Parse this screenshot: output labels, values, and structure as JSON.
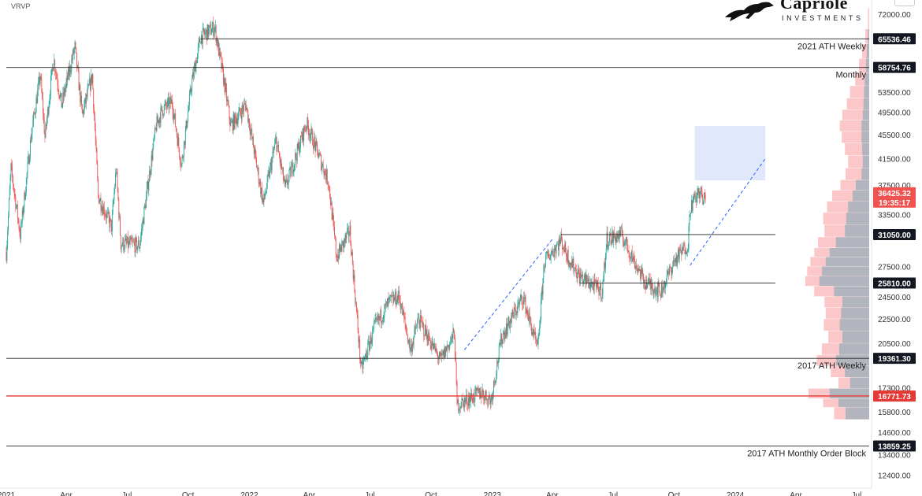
{
  "header": {
    "indicator_label": "VRVP",
    "logo": {
      "name": "Capriole",
      "tagline": "INVESTMENTS"
    }
  },
  "chart_data": {
    "type": "candlestick",
    "symbol": "BTCUSD",
    "y_scale": "log",
    "ylim": [
      11800,
      76000
    ],
    "xlim": [
      "2021-01-01",
      "2024-07-20"
    ],
    "y_ticks": [
      72000,
      53500,
      49500,
      45500,
      41500,
      37500,
      33500,
      27500,
      24500,
      22500,
      20500,
      17300,
      15800,
      14600,
      13400,
      12400
    ],
    "x_tick_labels": [
      {
        "label": "2021",
        "date": "2021-01-01"
      },
      {
        "label": "Apr",
        "date": "2021-04-01"
      },
      {
        "label": "Jul",
        "date": "2021-07-01"
      },
      {
        "label": "Oct",
        "date": "2021-10-01"
      },
      {
        "label": "2022",
        "date": "2022-01-01"
      },
      {
        "label": "Apr",
        "date": "2022-04-01"
      },
      {
        "label": "Jul",
        "date": "2022-07-01"
      },
      {
        "label": "Oct",
        "date": "2022-10-01"
      },
      {
        "label": "2023",
        "date": "2023-01-01"
      },
      {
        "label": "Apr",
        "date": "2023-04-01"
      },
      {
        "label": "Jul",
        "date": "2023-07-01"
      },
      {
        "label": "Oct",
        "date": "2023-10-01"
      },
      {
        "label": "2024",
        "date": "2024-01-01"
      },
      {
        "label": "Apr",
        "date": "2024-04-01"
      },
      {
        "label": "Jul",
        "date": "2024-07-01"
      }
    ],
    "price_path": [
      [
        "2021-01-01",
        29000
      ],
      [
        "2021-01-08",
        40000
      ],
      [
        "2021-01-22",
        31000
      ],
      [
        "2021-02-08",
        46000
      ],
      [
        "2021-02-21",
        57000
      ],
      [
        "2021-02-28",
        45000
      ],
      [
        "2021-03-13",
        61000
      ],
      [
        "2021-03-25",
        51000
      ],
      [
        "2021-04-14",
        63500
      ],
      [
        "2021-04-25",
        49000
      ],
      [
        "2021-05-10",
        57000
      ],
      [
        "2021-05-19",
        36000
      ],
      [
        "2021-06-08",
        32000
      ],
      [
        "2021-06-15",
        40000
      ],
      [
        "2021-06-22",
        30000
      ],
      [
        "2021-07-20",
        29800
      ],
      [
        "2021-08-14",
        47000
      ],
      [
        "2021-08-23",
        50000
      ],
      [
        "2021-09-07",
        51500
      ],
      [
        "2021-09-21",
        40500
      ],
      [
        "2021-10-06",
        55000
      ],
      [
        "2021-10-20",
        66000
      ],
      [
        "2021-11-10",
        68500
      ],
      [
        "2021-11-26",
        54000
      ],
      [
        "2021-12-04",
        47000
      ],
      [
        "2021-12-27",
        51000
      ],
      [
        "2022-01-22",
        35000
      ],
      [
        "2022-02-10",
        44500
      ],
      [
        "2022-02-24",
        37000
      ],
      [
        "2022-03-28",
        47500
      ],
      [
        "2022-04-30",
        38000
      ],
      [
        "2022-05-12",
        28500
      ],
      [
        "2022-06-01",
        31500
      ],
      [
        "2022-06-18",
        18500
      ],
      [
        "2022-07-08",
        21800
      ],
      [
        "2022-07-30",
        24000
      ],
      [
        "2022-08-14",
        24500
      ],
      [
        "2022-08-31",
        20000
      ],
      [
        "2022-09-12",
        22500
      ],
      [
        "2022-10-15",
        19200
      ],
      [
        "2022-11-05",
        21300
      ],
      [
        "2022-11-09",
        16200
      ],
      [
        "2022-12-15",
        17000
      ],
      [
        "2022-12-30",
        16500
      ],
      [
        "2023-01-15",
        21000
      ],
      [
        "2023-02-16",
        24500
      ],
      [
        "2023-03-10",
        20000
      ],
      [
        "2023-03-20",
        28000
      ],
      [
        "2023-04-14",
        30400
      ],
      [
        "2023-04-26",
        28300
      ],
      [
        "2023-05-12",
        26500
      ],
      [
        "2023-06-15",
        25000
      ],
      [
        "2023-06-22",
        30500
      ],
      [
        "2023-07-14",
        31000
      ],
      [
        "2023-08-17",
        26000
      ],
      [
        "2023-09-11",
        25000
      ],
      [
        "2023-10-01",
        28000
      ],
      [
        "2023-10-22",
        30000
      ],
      [
        "2023-10-25",
        34500
      ],
      [
        "2023-11-09",
        36700
      ],
      [
        "2023-11-14",
        35000
      ],
      [
        "2023-11-17",
        36425
      ]
    ],
    "levels": [
      {
        "value": 65536.46,
        "label": "65536.46",
        "caption": "2021 ATH Weekly",
        "start": "2021-10-20",
        "end": "2024-07-20",
        "color": "#222222",
        "tag_bg": "#131722"
      },
      {
        "value": 58754.76,
        "label": "58754.76",
        "caption": "Monthly",
        "start": "2021-01-01",
        "end": "2024-07-20",
        "color": "#222222",
        "tag_bg": "#131722"
      },
      {
        "value": 31050.0,
        "label": "31050.00",
        "caption": "",
        "start": "2023-04-14",
        "end": "2024-03-01",
        "color": "#222222",
        "tag_bg": "#131722"
      },
      {
        "value": 25810.0,
        "label": "25810.00",
        "caption": "",
        "start": "2023-05-12",
        "end": "2024-03-01",
        "color": "#222222",
        "tag_bg": "#131722"
      },
      {
        "value": 19361.3,
        "label": "19361.30",
        "caption": "2017 ATH Weekly",
        "start": "2021-01-01",
        "end": "2024-07-20",
        "color": "#222222",
        "tag_bg": "#131722"
      },
      {
        "value": 16771.73,
        "label": "16771.73",
        "caption": "",
        "start": "2021-01-01",
        "end": "2024-07-20",
        "color": "#e53935",
        "tag_bg": "#e53935"
      },
      {
        "value": 13859.25,
        "label": "13859.25",
        "caption": "2017 ATH Monthly Order Block",
        "start": "2021-01-01",
        "end": "2024-07-20",
        "color": "#222222",
        "tag_bg": "#131722"
      }
    ],
    "current_price": {
      "value": 36425.32,
      "label": "36425.32",
      "countdown": "19:35:17",
      "color": "#ef5350"
    },
    "target_zone": {
      "start": "2023-11-01",
      "end": "2024-02-15",
      "low": 38200,
      "high": 47000,
      "color": "#c9d6f7"
    },
    "trend_lines": [
      {
        "from": [
          "2022-11-20",
          20000
        ],
        "to": [
          "2023-04-01",
          30500
        ]
      },
      {
        "from": [
          "2023-10-25",
          27600
        ],
        "to": [
          "2024-02-15",
          41500
        ]
      }
    ],
    "volume_profile": {
      "start_date": "2024-04-15",
      "colors": {
        "bull": "#b2b5be",
        "bear": "#fcc7c8",
        "bull_hover": "#9598a1"
      },
      "rows": [
        [
          70000,
          0.02,
          0.0
        ],
        [
          66000,
          0.06,
          0.02
        ],
        [
          62500,
          0.11,
          0.04
        ],
        [
          59000,
          0.16,
          0.05
        ],
        [
          56000,
          0.22,
          0.07
        ],
        [
          53500,
          0.3,
          0.08
        ],
        [
          51000,
          0.35,
          0.09
        ],
        [
          49000,
          0.42,
          0.1
        ],
        [
          47000,
          0.46,
          0.12
        ],
        [
          45000,
          0.43,
          0.12
        ],
        [
          43000,
          0.38,
          0.11
        ],
        [
          41000,
          0.33,
          0.1
        ],
        [
          39000,
          0.37,
          0.12
        ],
        [
          37500,
          0.45,
          0.21
        ],
        [
          36000,
          0.58,
          0.26
        ],
        [
          34500,
          0.66,
          0.33
        ],
        [
          33000,
          0.72,
          0.36
        ],
        [
          31500,
          0.7,
          0.38
        ],
        [
          30000,
          0.8,
          0.52
        ],
        [
          29000,
          0.86,
          0.62
        ],
        [
          28000,
          0.92,
          0.68
        ],
        [
          27000,
          0.97,
          0.74
        ],
        [
          26000,
          1.0,
          0.78
        ],
        [
          25000,
          0.86,
          0.55
        ],
        [
          24000,
          0.7,
          0.42
        ],
        [
          23000,
          0.68,
          0.44
        ],
        [
          22000,
          0.71,
          0.46
        ],
        [
          21000,
          0.64,
          0.42
        ],
        [
          20000,
          0.74,
          0.47
        ],
        [
          19200,
          0.82,
          0.52
        ],
        [
          18400,
          0.6,
          0.38
        ],
        [
          17600,
          0.48,
          0.3
        ],
        [
          16900,
          0.95,
          0.62
        ],
        [
          16300,
          0.72,
          0.48
        ],
        [
          15800,
          0.55,
          0.37
        ]
      ]
    }
  }
}
